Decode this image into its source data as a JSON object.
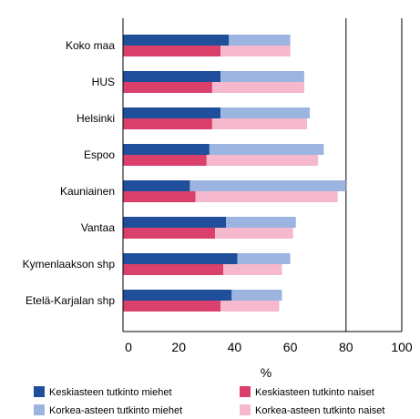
{
  "chart_data": {
    "type": "bar",
    "orientation": "horizontal",
    "stacked": true,
    "categories": [
      "Koko maa",
      "HUS",
      "Helsinki",
      "Espoo",
      "Kauniainen",
      "Vantaa",
      "Kymenlaakson shp",
      "Etelä-Karjalan shp"
    ],
    "series": [
      {
        "name": "Keskiasteen tutkinto  miehet",
        "color": "#1f4e9b",
        "group": "miehet",
        "values": [
          38,
          35,
          35,
          31,
          24,
          37,
          41,
          39
        ]
      },
      {
        "name": "Korkea-asteen tutkinto  miehet",
        "color": "#9cb4e0",
        "group": "miehet",
        "values": [
          22,
          30,
          32,
          41,
          56,
          25,
          19,
          18
        ]
      },
      {
        "name": "Keskiasteen tutkinto naiset",
        "color": "#d9406c",
        "group": "naiset",
        "values": [
          35,
          32,
          32,
          30,
          26,
          33,
          36,
          35
        ]
      },
      {
        "name": "Korkea-asteen tutkinto naiset",
        "color": "#f5b8cc",
        "group": "naiset",
        "values": [
          25,
          33,
          34,
          40,
          51,
          28,
          21,
          21
        ]
      }
    ],
    "xlim": [
      0,
      100
    ],
    "xticks": [
      0,
      20,
      40,
      60,
      80,
      100
    ],
    "xlabel": "%",
    "grid": "vertical lines at 80 and 100",
    "legend_position": "bottom"
  },
  "legend": {
    "items": [
      {
        "label": "Keskiasteen tutkinto  miehet",
        "color": "#1f4e9b"
      },
      {
        "label": "Korkea-asteen tutkinto  miehet",
        "color": "#9cb4e0"
      },
      {
        "label": "Keskiasteen tutkinto naiset",
        "color": "#d9406c"
      },
      {
        "label": "Korkea-asteen tutkinto naiset",
        "color": "#f5b8cc"
      }
    ]
  }
}
